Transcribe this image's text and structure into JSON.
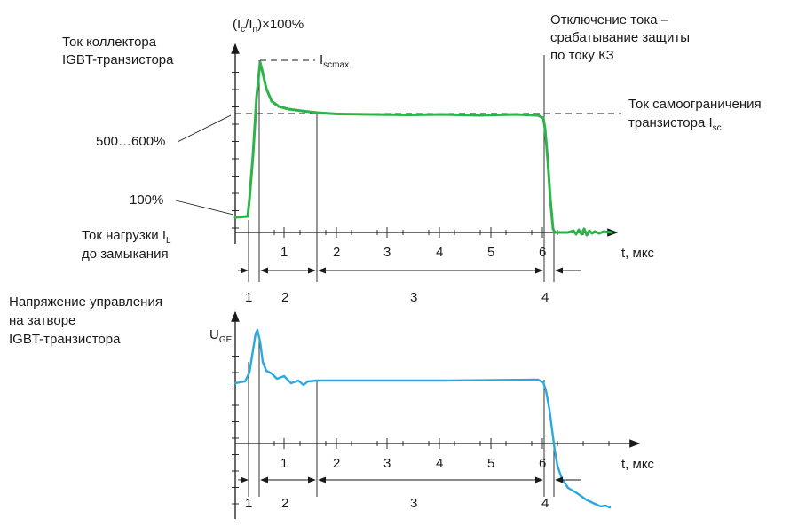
{
  "top": {
    "y_label_main": "(I",
    "y_label_c": "c",
    "y_label_mid": "/I",
    "y_label_n": "n",
    "y_label_end": ")×100%",
    "title_line1": "Ток коллектора",
    "title_line2": "IGBT-транзистора",
    "iscmax_main": "I",
    "iscmax_sub": "scmax",
    "cutoff_line1": "Отключение тока –",
    "cutoff_line2": "срабатывание защиты",
    "cutoff_line3": "по току КЗ",
    "selflimit_line1": "Ток самоограничения",
    "selflimit_line2_main": "транзистора I",
    "selflimit_line2_sub": "sc",
    "level_500": "500…600%",
    "level_100": "100%",
    "load_line1_main": "Ток нагрузки I",
    "load_line1_sub": "L",
    "load_line2": "до замыкания",
    "x_unit": "t, мкс",
    "x_ticks": [
      "1",
      "2",
      "3",
      "4",
      "5",
      "6"
    ],
    "phases": [
      "1",
      "2",
      "3",
      "4"
    ]
  },
  "bottom": {
    "title_line1": "Напряжение управления",
    "title_line2": "на затворе",
    "title_line3": "IGBT-транзистора",
    "y_label_main": "U",
    "y_label_sub": "GE",
    "x_unit": "t, мкс",
    "x_ticks": [
      "1",
      "2",
      "3",
      "4",
      "5",
      "6"
    ],
    "phases": [
      "1",
      "2",
      "3",
      "4"
    ]
  },
  "colors": {
    "collector_current": "#2db34a",
    "gate_voltage": "#29a9df",
    "axes": "#1a1a1a"
  }
}
